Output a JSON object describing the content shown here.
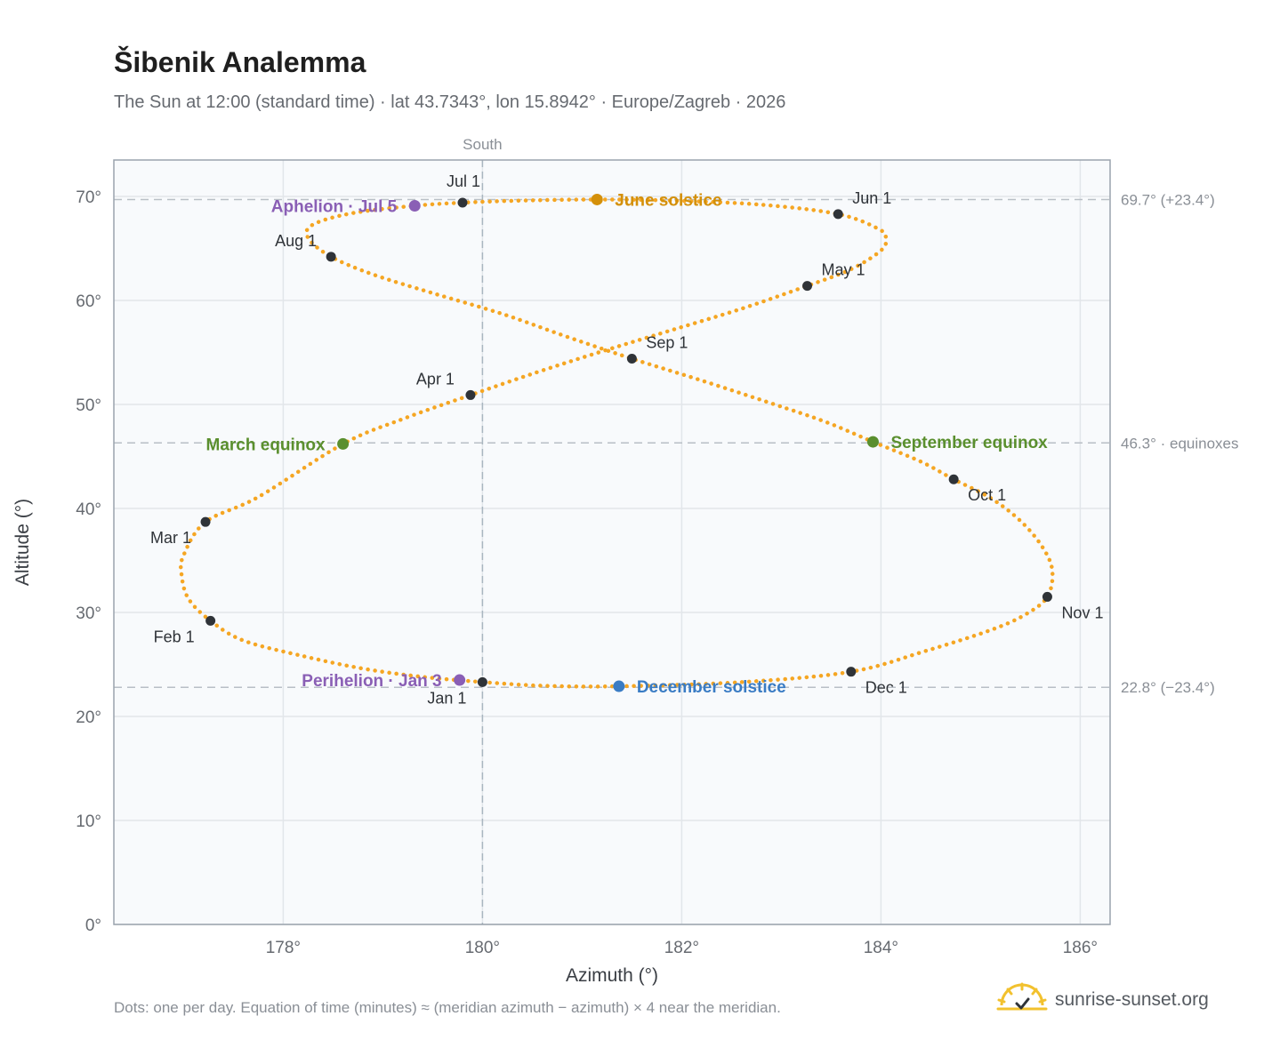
{
  "header": {
    "title": "Šibenik Analemma",
    "subtitle": "The Sun at 12:00 (standard time) · lat 43.7343°, lon 15.8942° · Europe/Zagreb · 2026"
  },
  "footer": {
    "note": "Dots: one per day. Equation of time (minutes) ≈ (meridian azimuth − azimuth) × 4 near the meridian.",
    "brand": "sunrise-sunset.org"
  },
  "colors": {
    "curve": "#f5a623",
    "month_dot": "#2f3338",
    "solstice_june": "#d4900a",
    "equinox": "#5a8f2e",
    "solstice_december": "#3a7cc4",
    "apsis": "#8a5fb5",
    "plot_bg": "#f8fafc",
    "grid": "#e2e6ea",
    "ref_line": "#b9bfc6"
  },
  "chart_data": {
    "type": "scatter",
    "xlabel": "Azimuth (°)",
    "ylabel": "Altitude (°)",
    "xlim": [
      176.3,
      186.3
    ],
    "ylim": [
      0,
      73.5
    ],
    "x_ticks": [
      178,
      180,
      182,
      184,
      186
    ],
    "x_tick_labels": [
      "178°",
      "180°",
      "182°",
      "184°",
      "186°"
    ],
    "y_ticks": [
      0,
      10,
      20,
      30,
      40,
      50,
      60,
      70
    ],
    "y_tick_labels": [
      "0°",
      "10°",
      "20°",
      "30°",
      "40°",
      "50°",
      "60°",
      "70°"
    ],
    "grid": true,
    "meridian": {
      "azimuth": 180,
      "label": "South"
    },
    "reference_lines": [
      {
        "altitude": 69.7,
        "label": "69.7° (+23.4°)"
      },
      {
        "altitude": 46.3,
        "label": "46.3° · equinoxes"
      },
      {
        "altitude": 22.8,
        "label": "22.8° (−23.4°)"
      }
    ],
    "curve_points": [
      [
        180.0,
        23.3
      ],
      [
        179.4,
        23.8
      ],
      [
        178.8,
        24.6
      ],
      [
        178.2,
        25.8
      ],
      [
        177.6,
        27.3
      ],
      [
        177.27,
        29.2
      ],
      [
        177.05,
        31.3
      ],
      [
        176.98,
        33.6
      ],
      [
        177.0,
        35.5
      ],
      [
        177.22,
        38.7
      ],
      [
        177.75,
        41.1
      ],
      [
        178.6,
        46.2
      ],
      [
        179.2,
        48.6
      ],
      [
        179.88,
        50.9
      ],
      [
        180.55,
        53.1
      ],
      [
        181.2,
        55.1
      ],
      [
        181.85,
        57.0
      ],
      [
        182.6,
        59.2
      ],
      [
        183.26,
        61.4
      ],
      [
        183.7,
        63.0
      ],
      [
        184.0,
        64.8
      ],
      [
        184.05,
        66.0
      ],
      [
        183.97,
        66.9
      ],
      [
        183.57,
        68.3
      ],
      [
        182.8,
        69.2
      ],
      [
        181.9,
        69.6
      ],
      [
        181.15,
        69.7
      ],
      [
        180.4,
        69.6
      ],
      [
        179.8,
        69.4
      ],
      [
        179.32,
        69.1
      ],
      [
        178.7,
        68.4
      ],
      [
        178.3,
        67.3
      ],
      [
        178.25,
        66.0
      ],
      [
        178.48,
        64.2
      ],
      [
        178.9,
        62.5
      ],
      [
        179.5,
        60.7
      ],
      [
        180.2,
        58.7
      ],
      [
        180.85,
        56.5
      ],
      [
        181.5,
        54.4
      ],
      [
        182.2,
        52.3
      ],
      [
        182.9,
        50.1
      ],
      [
        183.45,
        48.3
      ],
      [
        183.92,
        46.4
      ],
      [
        184.4,
        44.5
      ],
      [
        184.73,
        42.8
      ],
      [
        185.1,
        41.0
      ],
      [
        185.4,
        38.8
      ],
      [
        185.62,
        36.3
      ],
      [
        185.72,
        34.0
      ],
      [
        185.67,
        31.5
      ],
      [
        185.45,
        29.8
      ],
      [
        185.1,
        28.3
      ],
      [
        184.45,
        26.3
      ],
      [
        183.7,
        24.3
      ],
      [
        182.6,
        23.3
      ],
      [
        181.37,
        22.9
      ],
      [
        180.6,
        22.95
      ],
      [
        180.0,
        23.3
      ]
    ],
    "month_markers": [
      {
        "label": "Jan 1",
        "az": 180.0,
        "alt": 23.3
      },
      {
        "label": "Feb 1",
        "az": 177.27,
        "alt": 29.2
      },
      {
        "label": "Mar 1",
        "az": 177.22,
        "alt": 38.7
      },
      {
        "label": "Apr 1",
        "az": 179.88,
        "alt": 50.9
      },
      {
        "label": "May 1",
        "az": 183.26,
        "alt": 61.4
      },
      {
        "label": "Jun 1",
        "az": 183.57,
        "alt": 68.3
      },
      {
        "label": "Jul 1",
        "az": 179.8,
        "alt": 69.4
      },
      {
        "label": "Aug 1",
        "az": 178.48,
        "alt": 64.2
      },
      {
        "label": "Sep 1",
        "az": 181.5,
        "alt": 54.4
      },
      {
        "label": "Oct 1",
        "az": 184.73,
        "alt": 42.8
      },
      {
        "label": "Nov 1",
        "az": 185.67,
        "alt": 31.5
      },
      {
        "label": "Dec 1",
        "az": 183.7,
        "alt": 24.3
      }
    ],
    "events": [
      {
        "label": "June solstice",
        "az": 181.15,
        "alt": 69.7,
        "color_key": "solstice_june",
        "side": "right"
      },
      {
        "label": "March equinox",
        "az": 178.6,
        "alt": 46.2,
        "color_key": "equinox",
        "side": "left"
      },
      {
        "label": "September equinox",
        "az": 183.92,
        "alt": 46.4,
        "color_key": "equinox",
        "side": "right"
      },
      {
        "label": "December solstice",
        "az": 181.37,
        "alt": 22.9,
        "color_key": "solstice_december",
        "side": "right"
      },
      {
        "label": "Aphelion · Jul 5",
        "az": 179.32,
        "alt": 69.1,
        "color_key": "apsis",
        "side": "left"
      },
      {
        "label": "Perihelion · Jan 3",
        "az": 179.77,
        "alt": 23.5,
        "color_key": "apsis",
        "side": "left"
      }
    ]
  }
}
